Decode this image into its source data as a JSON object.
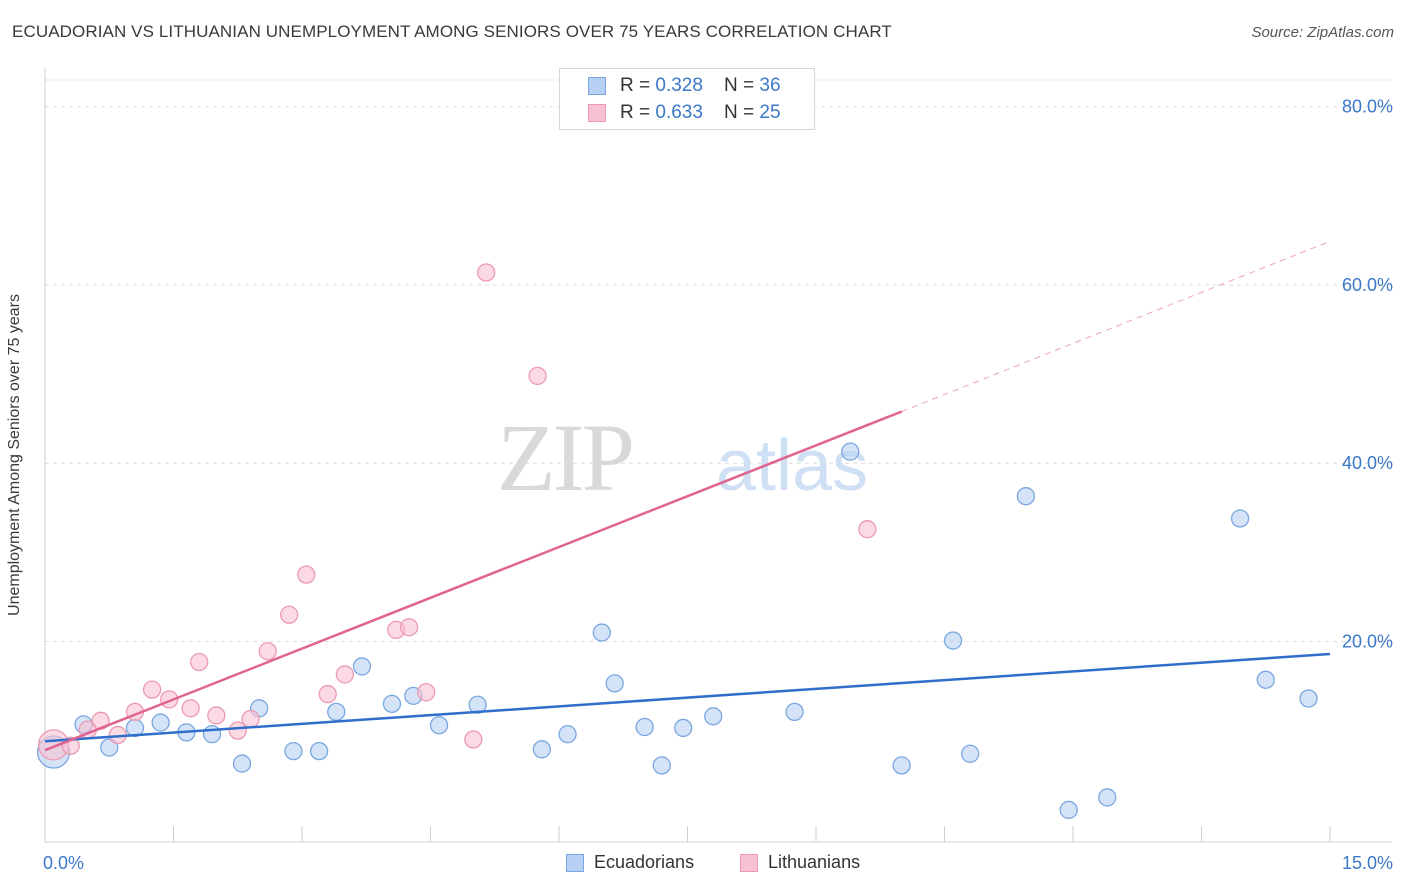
{
  "title": "ECUADORIAN VS LITHUANIAN UNEMPLOYMENT AMONG SENIORS OVER 75 YEARS CORRELATION CHART",
  "source": "Source: ZipAtlas.com",
  "watermark": {
    "zip": "ZIP",
    "atlas": "atlas"
  },
  "legend_top": {
    "rows": [
      {
        "r_label": "R = ",
        "r_value": "0.328",
        "n_label": "N = ",
        "n_value": "36"
      },
      {
        "r_label": "R = ",
        "r_value": "0.633",
        "n_label": "N = ",
        "n_value": "25"
      }
    ]
  },
  "colors": {
    "ecuadorians_fill": "#b7d1f4",
    "ecuadorians_stroke": "#7aa7e0",
    "ecuadorians_line": "#2f6fcb",
    "lithuanians_fill": "#f8c2d2",
    "lithuanians_stroke": "#ec9ab4",
    "lithuanians_line": "#e0648f",
    "axis_text": "#3b78c9",
    "grid": "#dedede"
  },
  "chart_data": {
    "type": "scatter",
    "title": "ECUADORIAN VS LITHUANIAN UNEMPLOYMENT AMONG SENIORS OVER 75 YEARS CORRELATION CHART",
    "xlabel": "",
    "ylabel": "Unemployment Among Seniors over 75 years",
    "xlim": [
      0,
      15
    ],
    "ylim": [
      -2.5,
      83
    ],
    "x_tick_labels": [
      "0.0%",
      "15.0%"
    ],
    "y_ticks": [
      20,
      40,
      60,
      80
    ],
    "y_tick_labels": [
      "20.0%",
      "40.0%",
      "60.0%",
      "80.0%"
    ],
    "grid": true,
    "legend_position": "top-center and bottom",
    "series": [
      {
        "name": "Ecuadorians",
        "points": [
          {
            "x": 0.1,
            "y": 7.6,
            "big": true
          },
          {
            "x": 0.45,
            "y": 10.7
          },
          {
            "x": 0.75,
            "y": 8.1
          },
          {
            "x": 1.05,
            "y": 10.3
          },
          {
            "x": 1.35,
            "y": 10.9
          },
          {
            "x": 1.65,
            "y": 9.8
          },
          {
            "x": 1.95,
            "y": 9.6
          },
          {
            "x": 2.3,
            "y": 6.3
          },
          {
            "x": 2.5,
            "y": 12.5
          },
          {
            "x": 2.9,
            "y": 7.7
          },
          {
            "x": 3.2,
            "y": 7.7
          },
          {
            "x": 3.4,
            "y": 12.1
          },
          {
            "x": 3.7,
            "y": 17.2
          },
          {
            "x": 4.05,
            "y": 13.0
          },
          {
            "x": 4.3,
            "y": 13.9
          },
          {
            "x": 4.6,
            "y": 10.6
          },
          {
            "x": 5.05,
            "y": 12.9
          },
          {
            "x": 5.8,
            "y": 7.9
          },
          {
            "x": 6.1,
            "y": 9.6
          },
          {
            "x": 6.5,
            "y": 21.0
          },
          {
            "x": 6.65,
            "y": 15.3
          },
          {
            "x": 7.0,
            "y": 10.4
          },
          {
            "x": 7.2,
            "y": 6.1
          },
          {
            "x": 7.45,
            "y": 10.3
          },
          {
            "x": 7.8,
            "y": 11.6
          },
          {
            "x": 8.75,
            "y": 12.1
          },
          {
            "x": 9.4,
            "y": 41.3
          },
          {
            "x": 10.0,
            "y": 6.1
          },
          {
            "x": 10.6,
            "y": 20.1
          },
          {
            "x": 10.8,
            "y": 7.4
          },
          {
            "x": 11.45,
            "y": 36.3
          },
          {
            "x": 11.95,
            "y": 1.1
          },
          {
            "x": 12.4,
            "y": 2.5
          },
          {
            "x": 13.95,
            "y": 33.8
          },
          {
            "x": 14.25,
            "y": 15.7
          },
          {
            "x": 14.75,
            "y": 13.6
          }
        ],
        "trend": {
          "x1": 0,
          "y1": 8.8,
          "x2": 15,
          "y2": 18.6
        }
      },
      {
        "name": "Lithuanians",
        "points": [
          {
            "x": 0.1,
            "y": 8.4,
            "big": true
          },
          {
            "x": 0.3,
            "y": 8.3
          },
          {
            "x": 0.5,
            "y": 10.1
          },
          {
            "x": 0.65,
            "y": 11.1
          },
          {
            "x": 0.85,
            "y": 9.5
          },
          {
            "x": 1.05,
            "y": 12.1
          },
          {
            "x": 1.25,
            "y": 14.6
          },
          {
            "x": 1.45,
            "y": 13.5
          },
          {
            "x": 1.7,
            "y": 12.5
          },
          {
            "x": 1.8,
            "y": 17.7
          },
          {
            "x": 2.0,
            "y": 11.7
          },
          {
            "x": 2.25,
            "y": 10.0
          },
          {
            "x": 2.4,
            "y": 11.3
          },
          {
            "x": 2.6,
            "y": 18.9
          },
          {
            "x": 2.85,
            "y": 23.0
          },
          {
            "x": 3.05,
            "y": 27.5
          },
          {
            "x": 3.3,
            "y": 14.1
          },
          {
            "x": 3.5,
            "y": 16.3
          },
          {
            "x": 4.1,
            "y": 21.3
          },
          {
            "x": 4.25,
            "y": 21.6
          },
          {
            "x": 4.45,
            "y": 14.3
          },
          {
            "x": 5.0,
            "y": 9.0
          },
          {
            "x": 5.15,
            "y": 61.4
          },
          {
            "x": 5.75,
            "y": 49.8
          },
          {
            "x": 9.6,
            "y": 32.6
          }
        ],
        "trend": {
          "x1": 0,
          "y1": 7.8,
          "x2": 10.0,
          "y2": 45.8
        },
        "trend_extended": {
          "x1": 10.0,
          "y1": 45.8,
          "x2": 15,
          "y2": 64.9
        }
      }
    ]
  },
  "legend_bottom": {
    "items": [
      "Ecuadorians",
      "Lithuanians"
    ]
  }
}
